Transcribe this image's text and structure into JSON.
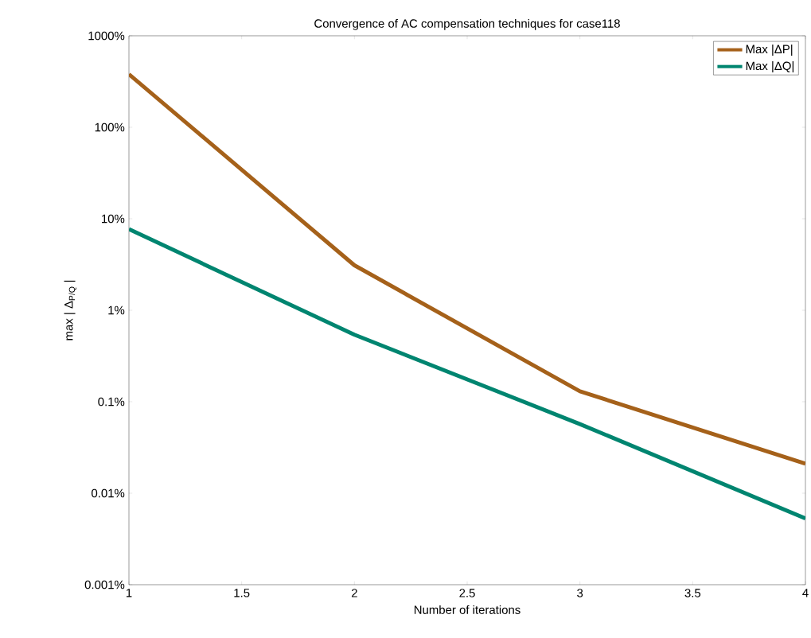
{
  "chart_data": {
    "type": "line",
    "title": "Convergence of AC compensation techniques for case118",
    "xlabel": "Number of iterations",
    "ylabel": "max | Δ$_{P/Q}$ |",
    "x": [
      1,
      2,
      3,
      4
    ],
    "series": [
      {
        "name": "Max |ΔP|",
        "color": "#a5611a",
        "values": [
          380,
          3.1,
          0.13,
          0.021
        ]
      },
      {
        "name": "Max |ΔQ|",
        "color": "#008570",
        "values": [
          7.7,
          0.54,
          0.057,
          0.0053
        ]
      }
    ],
    "log": "y",
    "xlim": [
      1,
      4
    ],
    "ylim": [
      0.001,
      1000
    ],
    "xticks": [
      1,
      1.5,
      2,
      2.5,
      3,
      3.5,
      4
    ],
    "yticks": [
      {
        "value": 0.001,
        "label": "0.001%"
      },
      {
        "value": 0.01,
        "label": "0.01%"
      },
      {
        "value": 0.1,
        "label": "0.1%"
      },
      {
        "value": 1,
        "label": "1%"
      },
      {
        "value": 10,
        "label": "10%"
      },
      {
        "value": 100,
        "label": "100%"
      },
      {
        "value": 1000,
        "label": "1000%"
      }
    ],
    "legend": "top right",
    "grid": false,
    "marker": "none",
    "line_style": "solid"
  }
}
